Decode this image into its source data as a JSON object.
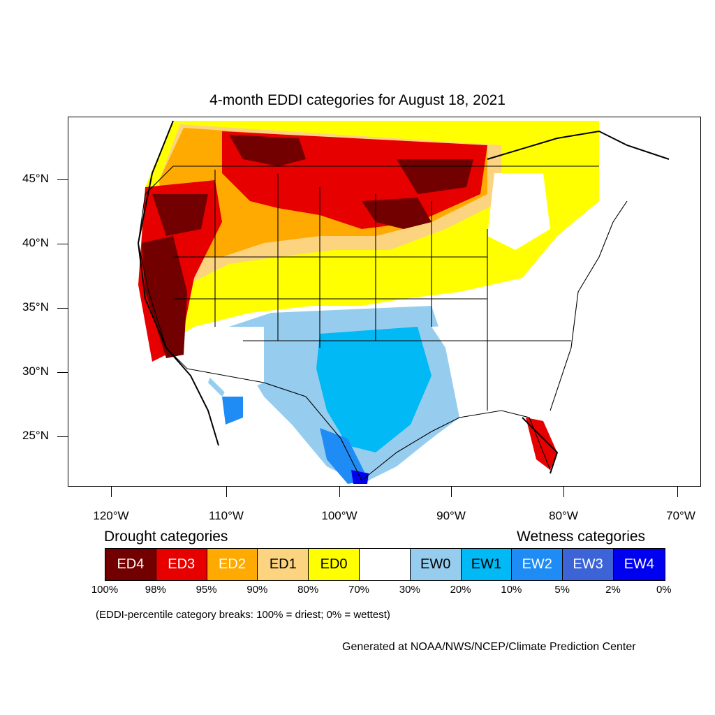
{
  "title": "4-month EDDI categories for August 18, 2021",
  "lat_labels": [
    "45°N",
    "40°N",
    "35°N",
    "30°N",
    "25°N"
  ],
  "lon_labels": [
    "120°W",
    "110°W",
    "100°W",
    "90°W",
    "80°W",
    "70°W"
  ],
  "legend": {
    "drought_heading": "Drought categories",
    "wetness_heading": "Wetness categories",
    "categories": [
      {
        "label": "ED4",
        "color": "#730000"
      },
      {
        "label": "ED3",
        "color": "#e60000"
      },
      {
        "label": "ED2",
        "color": "#ffaa00"
      },
      {
        "label": "ED1",
        "color": "#fcd37f"
      },
      {
        "label": "ED0",
        "color": "#ffff00"
      },
      {
        "label": "",
        "color": "#ffffff"
      },
      {
        "label": "EW0",
        "color": "#96cdef"
      },
      {
        "label": "EW1",
        "color": "#00b9f5"
      },
      {
        "label": "EW2",
        "color": "#1f8cf5"
      },
      {
        "label": "EW3",
        "color": "#3c64d7"
      },
      {
        "label": "EW4",
        "color": "#0000f0"
      }
    ],
    "percentiles": [
      "100%",
      "98%",
      "95%",
      "90%",
      "80%",
      "70%",
      "30%",
      "20%",
      "10%",
      "5%",
      "2%",
      "0%"
    ]
  },
  "note": "(EDDI-percentile category breaks: 100% = driest; 0% = wettest)",
  "credit": "Generated at NOAA/NWS/NCEP/Climate Prediction Center"
}
